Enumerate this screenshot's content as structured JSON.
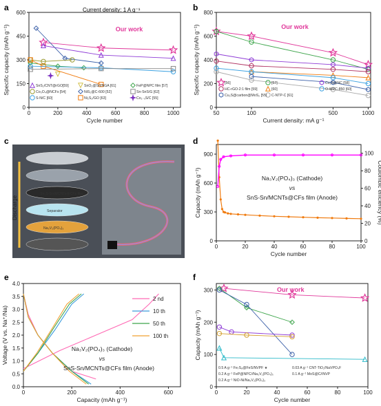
{
  "panels": {
    "a": {
      "letter": "a",
      "title": "Current density: 1 A g⁻¹",
      "ylabel": "Specific capacity (mAh g⁻¹)",
      "xlabel": "Cycle number",
      "our_work": "Our work",
      "legend": [
        "SnS₂/CNT@rGO[59]",
        "SnO₂@Sn/NGA [61]",
        "FeP@NPC film [57]",
        "Co₃O₄@NCFs [54]",
        "NiS₂@C-600 [52]",
        "Sn-SnS/G [62]",
        "S-N/C [60]",
        "Ni₂S₂/GO [63]",
        "Co₁₋ₓS/C [55]"
      ]
    },
    "b": {
      "letter": "b",
      "ylabel": "Specific capacity (mAh g⁻¹)",
      "xlabel": "Current density: mA g⁻¹",
      "our_work": "Our work",
      "legend": [
        "[56]",
        "[57]",
        "Cu₂S@NC [58]",
        "HC-rGO-2:1 film [59]",
        "[60]",
        "O-WPC-850 [60]",
        "Cu₂S@carbon@MoS₂ [55]",
        "C-NTP-C [61]"
      ]
    },
    "c": {
      "letter": "c",
      "labels": [
        "Discharge",
        "Sn₂S-Sn/MCNTs@CFs film",
        "Separator",
        "Na₃V₂(PO₄)₃"
      ]
    },
    "d": {
      "letter": "d",
      "ylabel": "Capacity (mAh g⁻¹)",
      "y2label": "Coulombic efficiency (%)",
      "xlabel": "Cycle number",
      "text1": "Na₃V₂(PO₄)₃  (Cathode)",
      "text2": "vs",
      "text3": "SnS-Sn/MCNTs@CFs film (Anode)"
    },
    "e": {
      "letter": "e",
      "ylabel": "Voltage (V vs. Na⁺/Na)",
      "xlabel": "Capacity (mAh g⁻¹)",
      "legend": [
        "2 nd",
        "10 th",
        "50 th",
        "100 th"
      ],
      "text1": "Na₃V₂(PO₄)₃        (Cathode)",
      "text2": "vs",
      "text3": "SnS-Sn/MCNTs@CFs film  (Anode)"
    },
    "f": {
      "letter": "f",
      "ylabel": "Capacity (mAh g⁻¹)",
      "xlabel": "Cycle number",
      "our_work": "Our work",
      "legend": [
        "0.5 A g⁻¹ Fe₇S₈@FeS/NVPF ★",
        "0.03 A g⁻¹ CNT-TiO₂/NaVPO₄F",
        "0.2 A g⁻¹ FeP@NPC//Na₃V₂(PO₄)₃",
        "0.1 A g⁻¹ MoS@C//NVP",
        "0.2 A g⁻¹ NiO-Ni/Na₃V₂(PO₄)₃"
      ]
    }
  },
  "colors": {
    "pink": "#e0379a",
    "orange": "#f07b0f",
    "blue": "#3a7bd5",
    "green": "#3ca44a",
    "purple": "#8e3bd6",
    "magenta": "#ff00ff"
  },
  "chart_data": [
    {
      "panel": "a",
      "type": "line",
      "xlim": [
        0,
        1050
      ],
      "ylim": [
        0,
        600
      ],
      "xticks": [
        0,
        200,
        400,
        600,
        800,
        1000
      ],
      "yticks": [
        0,
        150,
        300,
        450,
        600
      ],
      "series": [
        {
          "name": "Our work",
          "color": "#e0379a",
          "marker": "star",
          "x": [
            100,
            500,
            1000
          ],
          "y": [
            410,
            375,
            362
          ]
        },
        {
          "name": "SnS₂/CNT@rGO",
          "color": "#8e3bd6",
          "marker": "triangle",
          "x": [
            100,
            500,
            1000
          ],
          "y": [
            390,
            330,
            310
          ]
        },
        {
          "name": "NiS₂@C-600",
          "color": "#3a5fa8",
          "marker": "diamond",
          "x": [
            50,
            250,
            500
          ],
          "y": [
            500,
            310,
            280
          ]
        },
        {
          "name": "FeP@NPC film",
          "color": "#3ca44a",
          "marker": "diamond",
          "x": [
            10,
            200,
            380
          ],
          "y": [
            280,
            260,
            250
          ]
        },
        {
          "name": "Co₃O₄@NCFs",
          "color": "#9a9a30",
          "marker": "circle",
          "x": [
            10,
            100,
            300
          ],
          "y": [
            300,
            290,
            300
          ]
        },
        {
          "name": "Ni₂S₂/GO",
          "color": "#f07b0f",
          "marker": "square",
          "x": [
            10,
            100,
            500
          ],
          "y": [
            300,
            260,
            145
          ]
        },
        {
          "name": "S-N/C",
          "color": "#3aa0e0",
          "marker": "circle",
          "x": [
            10,
            500,
            1000
          ],
          "y": [
            260,
            250,
            225
          ]
        },
        {
          "name": "Sn-SnS/G",
          "color": "#888888",
          "marker": "square",
          "x": [
            10,
            500,
            1000
          ],
          "y": [
            240,
            245,
            245
          ]
        },
        {
          "name": "Co₁₋ₓS/C",
          "color": "#7a2fc0",
          "marker": "star4",
          "x": [
            150
          ],
          "y": [
            200
          ]
        },
        {
          "name": "SnO₂@Sn/NGA",
          "color": "#d4c04a",
          "marker": "triangle-down",
          "x": [
            200
          ],
          "y": [
            210
          ]
        }
      ]
    },
    {
      "panel": "b",
      "type": "line",
      "xscale": "log",
      "xlim": [
        50,
        1050
      ],
      "ylim": [
        0,
        800
      ],
      "xticks": [
        50,
        100,
        500,
        1000
      ],
      "yticks": [
        0,
        200,
        400,
        600,
        800
      ],
      "series": [
        {
          "name": "Our work",
          "color": "#e0379a",
          "marker": "star",
          "x": [
            50,
            100,
            500,
            1000
          ],
          "y": [
            640,
            600,
            460,
            360
          ]
        },
        {
          "name": "[56]",
          "color": "#3ca44a",
          "marker": "circle",
          "x": [
            50,
            100,
            500,
            1000
          ],
          "y": [
            640,
            550,
            400,
            320
          ]
        },
        {
          "name": "Cu₂S@carbon@MoS₂",
          "color": "#8e3bd6",
          "marker": "hexagon",
          "x": [
            50,
            100,
            500,
            1000
          ],
          "y": [
            450,
            400,
            360,
            330
          ]
        },
        {
          "name": "[57]",
          "color": "#b03060",
          "marker": "circle",
          "x": [
            50,
            100,
            500,
            1000
          ],
          "y": [
            390,
            350,
            320,
            300
          ]
        },
        {
          "name": "Cu₂S@NC",
          "color": "#f07b0f",
          "marker": "triangle",
          "x": [
            100,
            500,
            1000
          ],
          "y": [
            300,
            270,
            250
          ]
        },
        {
          "name": "[60]",
          "color": "#3aa0e0",
          "marker": "circle",
          "x": [
            50,
            100,
            500,
            1000
          ],
          "y": [
            330,
            300,
            250,
            200
          ]
        },
        {
          "name": "O-WPC-850",
          "color": "#3a5fa8",
          "marker": "hexagon",
          "x": [
            100,
            500,
            1000
          ],
          "y": [
            260,
            210,
            150
          ]
        },
        {
          "name": "HC-rGO-2:1 film",
          "color": "#aaaaaa",
          "marker": "circle",
          "x": [
            50,
            100,
            500,
            1000
          ],
          "y": [
            300,
            230,
            150,
            100
          ]
        }
      ]
    },
    {
      "panel": "d",
      "type": "scatter",
      "xlim": [
        0,
        100
      ],
      "ylim": [
        0,
        1000
      ],
      "y2lim": [
        0,
        110
      ],
      "xticks": [
        0,
        20,
        40,
        60,
        80,
        100
      ],
      "yticks": [
        0,
        300,
        600,
        900
      ],
      "y2ticks": [
        0,
        20,
        40,
        60,
        80,
        100
      ],
      "series": [
        {
          "name": "Capacity",
          "color": "#f07b0f",
          "axis": "left",
          "x": [
            1,
            2,
            3,
            4,
            5,
            6,
            8,
            10,
            15,
            20,
            30,
            40,
            50,
            60,
            70,
            80,
            90,
            100
          ],
          "y": [
            1040,
            660,
            430,
            330,
            300,
            295,
            285,
            280,
            275,
            270,
            262,
            255,
            250,
            245,
            240,
            237,
            233,
            230
          ]
        },
        {
          "name": "Coulombic efficiency",
          "color": "#ff00ff",
          "axis": "right",
          "x": [
            1,
            2,
            3,
            5,
            10,
            20,
            40,
            60,
            80,
            100
          ],
          "y": [
            62,
            85,
            93,
            96,
            97,
            98,
            98,
            98,
            98,
            98
          ]
        }
      ]
    },
    {
      "panel": "e",
      "type": "line",
      "xlim": [
        0,
        650
      ],
      "ylim": [
        0,
        4.0
      ],
      "xticks": [
        0,
        200,
        400,
        600
      ],
      "yticks": [
        0,
        0.5,
        1.0,
        1.5,
        2.0,
        2.5,
        3.0,
        3.5,
        4.0
      ],
      "series": [
        {
          "name": "2 nd",
          "color": "#ff69b4",
          "charge_x": [
            0,
            150,
            300,
            450,
            520,
            560
          ],
          "charge_y": [
            0.7,
            1.4,
            2.0,
            2.6,
            3.2,
            3.6
          ],
          "discharge_x": [
            0,
            20,
            60,
            120,
            200,
            300
          ],
          "discharge_y": [
            3.6,
            2.8,
            2.0,
            1.3,
            0.6,
            0.3
          ]
        },
        {
          "name": "10 th",
          "color": "#3a9bdc",
          "charge_x": [
            0,
            60,
            130,
            200,
            250
          ],
          "charge_y": [
            0.6,
            1.3,
            2.2,
            3.2,
            3.6
          ],
          "discharge_x": [
            0,
            20,
            60,
            120,
            200,
            280
          ],
          "discharge_y": [
            3.6,
            2.7,
            2.0,
            1.3,
            0.6,
            0.1
          ]
        },
        {
          "name": "50 th",
          "color": "#3ca44a",
          "charge_x": [
            0,
            60,
            120,
            190,
            240
          ],
          "charge_y": [
            0.6,
            1.3,
            2.2,
            3.2,
            3.6
          ],
          "discharge_x": [
            0,
            20,
            60,
            120,
            200,
            270
          ],
          "discharge_y": [
            3.6,
            2.7,
            2.0,
            1.3,
            0.6,
            0.1
          ]
        },
        {
          "name": "100 th",
          "color": "#f0a030",
          "charge_x": [
            0,
            55,
            115,
            180,
            230
          ],
          "charge_y": [
            0.6,
            1.3,
            2.2,
            3.2,
            3.6
          ],
          "discharge_x": [
            0,
            20,
            60,
            120,
            190,
            260
          ],
          "discharge_y": [
            3.6,
            2.7,
            2.0,
            1.3,
            0.6,
            0.1
          ]
        }
      ]
    },
    {
      "panel": "f",
      "type": "line",
      "xlim": [
        0,
        100
      ],
      "ylim": [
        0,
        320
      ],
      "xticks": [
        0,
        20,
        40,
        60,
        80,
        100
      ],
      "yticks": [
        0,
        100,
        200,
        300
      ],
      "series": [
        {
          "name": "Our work",
          "color": "#e0379a",
          "marker": "star",
          "x": [
            5,
            50,
            98
          ],
          "y": [
            305,
            285,
            275
          ]
        },
        {
          "name": "FeP@NPC//Na₃V₂(PO₄)₃",
          "color": "#3ca44a",
          "marker": "diamond",
          "x": [
            2,
            20,
            50
          ],
          "y": [
            305,
            245,
            200
          ]
        },
        {
          "name": "NiO-Ni/Na₃V₂(PO₄)₃",
          "color": "#3a5fa8",
          "marker": "circle",
          "x": [
            2,
            20,
            50
          ],
          "y": [
            300,
            255,
            100
          ]
        },
        {
          "name": "CNT-TiO₂/NaVPO₄F",
          "color": "#8e3bd6",
          "marker": "circle",
          "x": [
            2,
            10,
            50
          ],
          "y": [
            185,
            170,
            160
          ]
        },
        {
          "name": "Fe₇S₈@FeS/NVPF",
          "color": "#d4a030",
          "marker": "circle",
          "x": [
            2,
            20,
            50
          ],
          "y": [
            165,
            160,
            155
          ]
        },
        {
          "name": "MoS@C//NVP",
          "color": "#2bbac9",
          "marker": "triangle",
          "x": [
            2,
            5,
            98
          ],
          "y": [
            120,
            90,
            85
          ]
        }
      ]
    }
  ]
}
